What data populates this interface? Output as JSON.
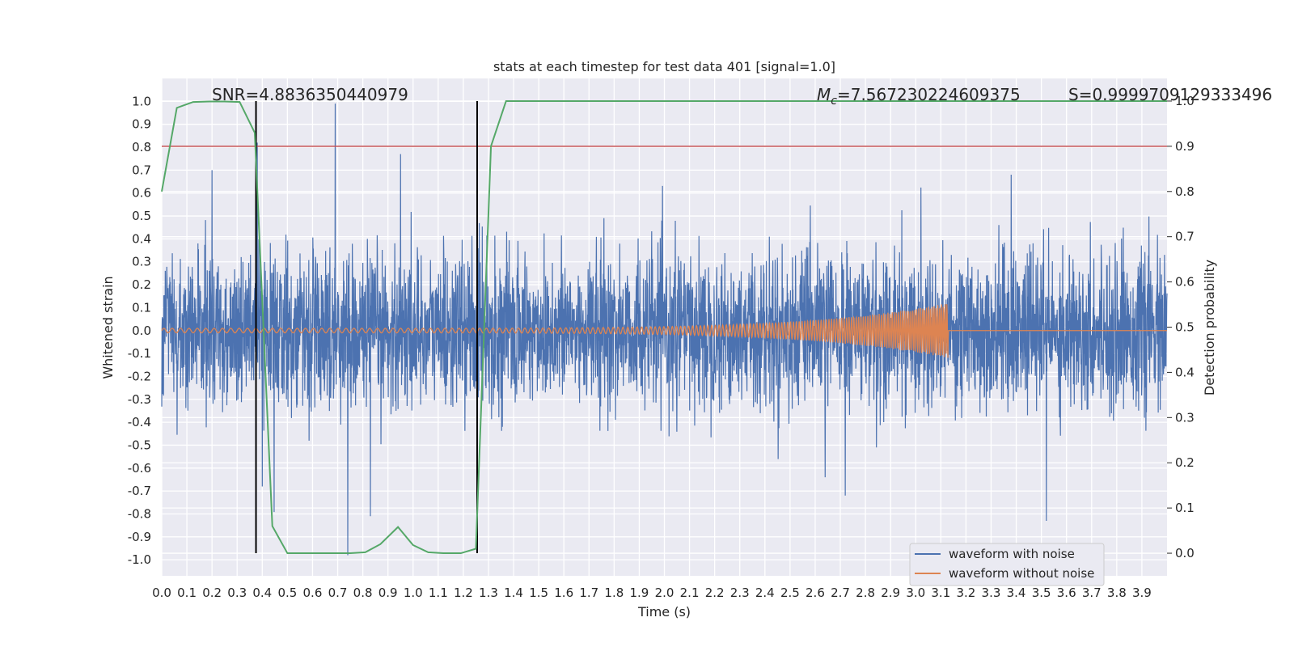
{
  "chart_data": {
    "type": "line",
    "title": "stats at each timestep for test data 401 [signal=1.0]",
    "xlabel": "Time (s)",
    "ylabel": "Whitened strain",
    "ylabel_right": "Detection probability",
    "xlim": [
      0.0,
      4.0
    ],
    "ylim": [
      -1.07,
      1.1
    ],
    "ylim_right": [
      -0.05,
      1.05
    ],
    "xticks": [
      "0.0",
      "0.1",
      "0.2",
      "0.3",
      "0.4",
      "0.5",
      "0.6",
      "0.7",
      "0.8",
      "0.9",
      "1.0",
      "1.1",
      "1.2",
      "1.3",
      "1.4",
      "1.5",
      "1.6",
      "1.7",
      "1.8",
      "1.9",
      "2.0",
      "2.1",
      "2.2",
      "2.3",
      "2.4",
      "2.5",
      "2.6",
      "2.7",
      "2.8",
      "2.9",
      "3.0",
      "3.1",
      "3.2",
      "3.3",
      "3.4",
      "3.5",
      "3.6",
      "3.7",
      "3.8",
      "3.9"
    ],
    "yticks": [
      "1.0",
      "0.9",
      "0.8",
      "0.7",
      "0.6",
      "0.5",
      "0.4",
      "0.3",
      "0.2",
      "0.1",
      "0.0",
      "-0.1",
      "-0.2",
      "-0.3",
      "-0.4",
      "-0.5",
      "-0.6",
      "-0.7",
      "-0.8",
      "-0.9",
      "-1.0"
    ],
    "yticks_right": [
      "1.0",
      "0.9",
      "0.8",
      "0.7",
      "0.6",
      "0.5",
      "0.4",
      "0.3",
      "0.2",
      "0.1",
      "0.0"
    ],
    "annotations": {
      "snr": "SNR=4.8836350440979",
      "mc_symbol": "M",
      "mc_sub": "c",
      "mc_value": "=7.567230224609375",
      "s_value": "S=0.9999709129333496"
    },
    "legend": {
      "placement": "lower-right",
      "entries": [
        "waveform with noise",
        "waveform without noise"
      ]
    },
    "grid": true,
    "colors": {
      "noise": "#4c72b0",
      "clean": "#dd8452",
      "probability": "#55a868",
      "threshold": "#c44e52",
      "marker": "#000000",
      "background": "#eaeaf2"
    },
    "series": [
      {
        "name": "waveform with noise",
        "kind": "noise",
        "envelope_amplitude": 0.3,
        "spikes": [
          [
            0.38,
            0.82
          ],
          [
            0.69,
            0.99
          ],
          [
            0.74,
            -0.98
          ],
          [
            0.95,
            0.77
          ],
          [
            0.83,
            -0.81
          ],
          [
            0.2,
            0.7
          ],
          [
            3.52,
            -0.83
          ],
          [
            3.38,
            0.68
          ],
          [
            2.64,
            -0.64
          ],
          [
            2.72,
            -0.72
          ],
          [
            0.4,
            -0.68
          ]
        ]
      },
      {
        "name": "waveform without noise",
        "kind": "chirp",
        "t_start": 0.0,
        "t_merge": 3.13,
        "start_amplitude": 0.01,
        "peak_amplitude": 0.12,
        "start_freq_hz": 30,
        "end_freq_hz": 140
      },
      {
        "name": "Detection probability",
        "axis": "right",
        "x": [
          0.0,
          0.06,
          0.125,
          0.19,
          0.25,
          0.31,
          0.37,
          0.44,
          0.5,
          0.56,
          0.62,
          0.69,
          0.75,
          0.81,
          0.87,
          0.94,
          1.0,
          1.06,
          1.12,
          1.19,
          1.25,
          1.31,
          1.37,
          1.44,
          1.5,
          2.0,
          3.0,
          4.0
        ],
        "y": [
          0.8,
          0.985,
          0.998,
          0.999,
          0.999,
          0.998,
          0.93,
          0.06,
          0.0,
          0.0,
          0.0,
          0.0,
          0.0,
          0.002,
          0.02,
          0.058,
          0.018,
          0.002,
          0.0,
          0.0,
          0.01,
          0.9,
          1.0,
          1.0,
          1.0,
          1.0,
          1.0,
          1.0
        ]
      }
    ],
    "threshold_right": 0.9,
    "vertical_markers_x": [
      0.375,
      1.255
    ]
  }
}
